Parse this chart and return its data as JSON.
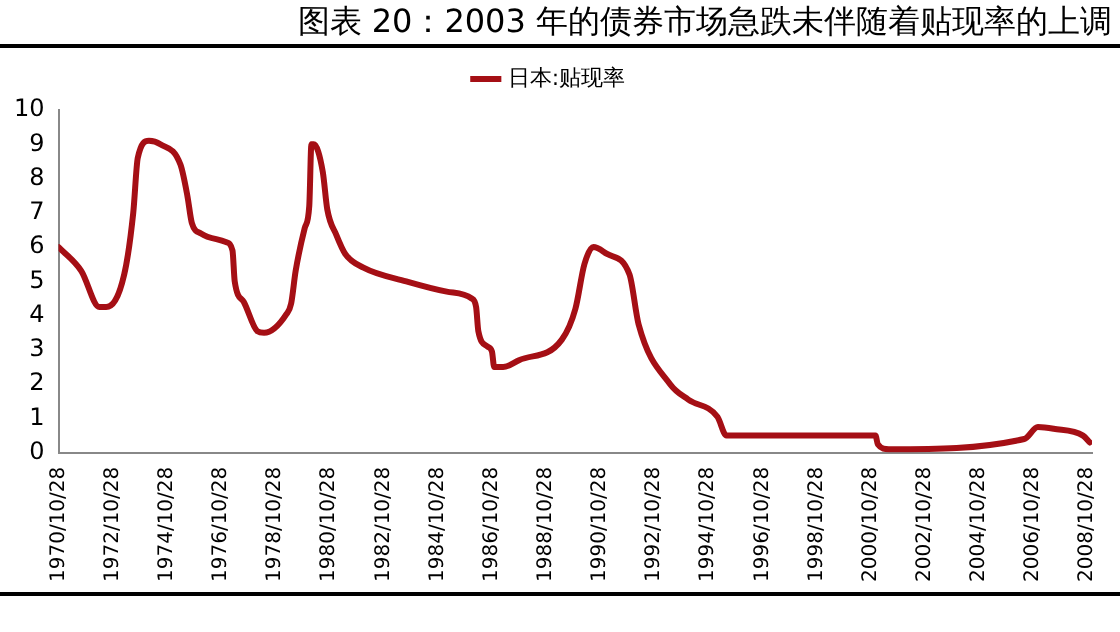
{
  "chart_data": {
    "type": "line",
    "title": "图表 20：2003 年的债券市场急跌未伴随着贴现率的上调",
    "series": [
      {
        "name": "日本:贴现率",
        "color": "#a50f15",
        "x": [
          "1970-10-28",
          "1971-09",
          "1972-05",
          "1972-08",
          "1973-04",
          "1973-08",
          "1973-10",
          "1974-03",
          "1974-08",
          "1975-05",
          "1975-08",
          "1975-10",
          "1976-02",
          "1977-01",
          "1977-04",
          "1977-05",
          "1977-09",
          "1978-03",
          "1978-06",
          "1979-04",
          "1979-06",
          "1979-08",
          "1979-12",
          "1980-02",
          "1980-03",
          "1980-04",
          "1980-08",
          "1980-10",
          "1981-02",
          "1981-06",
          "1982-02",
          "1983-09",
          "1985-03",
          "1986-02",
          "1986-04",
          "1986-05",
          "1986-09",
          "1986-11",
          "1986-12",
          "1987-04",
          "1987-11",
          "1989-06",
          "1989-12",
          "1990-04",
          "1990-08",
          "1991-02",
          "1991-12",
          "1992-04",
          "1993-06",
          "1994-02",
          "1995-03",
          "1995-07",
          "1995-12",
          "2001-01",
          "2001-02",
          "2001-07",
          "2006-07",
          "2007-01",
          "2007-08",
          "2008-09",
          "2008-12"
        ],
        "values": [
          6.0,
          5.3,
          4.25,
          4.25,
          5.2,
          7.0,
          8.6,
          9.1,
          9.0,
          8.4,
          7.5,
          6.7,
          6.4,
          6.15,
          5.9,
          5.0,
          4.4,
          3.55,
          3.5,
          4.05,
          4.35,
          5.3,
          6.55,
          7.2,
          9.0,
          9.0,
          8.2,
          7.1,
          6.35,
          5.8,
          5.4,
          5.0,
          4.7,
          4.5,
          4.25,
          3.55,
          3.1,
          2.95,
          2.5,
          2.5,
          2.7,
          3.3,
          4.2,
          5.5,
          6.0,
          5.8,
          5.2,
          3.75,
          2.0,
          1.55,
          1.05,
          0.5,
          0.5,
          0.5,
          0.25,
          0.1,
          0.4,
          0.75,
          0.7,
          0.5,
          0.3
        ]
      }
    ],
    "xlim": [
      "1970-10-28",
      "2008-12-31"
    ],
    "xticks": [
      {
        "value": "1970-10-28",
        "label": "1970/10/28"
      },
      {
        "value": "1972-10-28",
        "label": "1972/10/28"
      },
      {
        "value": "1974-10-28",
        "label": "1974/10/28"
      },
      {
        "value": "1976-10-28",
        "label": "1976/10/28"
      },
      {
        "value": "1978-10-28",
        "label": "1978/10/28"
      },
      {
        "value": "1980-10-28",
        "label": "1980/10/28"
      },
      {
        "value": "1982-10-28",
        "label": "1982/10/28"
      },
      {
        "value": "1984-10-28",
        "label": "1984/10/28"
      },
      {
        "value": "1986-10-28",
        "label": "1986/10/28"
      },
      {
        "value": "1988-10-28",
        "label": "1988/10/28"
      },
      {
        "value": "1990-10-28",
        "label": "1990/10/28"
      },
      {
        "value": "1992-10-28",
        "label": "1992/10/28"
      },
      {
        "value": "1994-10-28",
        "label": "1994/10/28"
      },
      {
        "value": "1996-10-28",
        "label": "1996/10/28"
      },
      {
        "value": "1998-10-28",
        "label": "1998/10/28"
      },
      {
        "value": "2000-10-28",
        "label": "2000/10/28"
      },
      {
        "value": "2002-10-28",
        "label": "2002/10/28"
      },
      {
        "value": "2004-10-28",
        "label": "2004/10/28"
      },
      {
        "value": "2006-10-28",
        "label": "2006/10/28"
      },
      {
        "value": "2008-10-28",
        "label": "2008/10/28"
      }
    ],
    "ylim": [
      0,
      10
    ],
    "yticks": [
      0,
      1,
      2,
      3,
      4,
      5,
      6,
      7,
      8,
      9,
      10
    ],
    "grid": false,
    "legend": "top",
    "marker": "none",
    "line_style": "solid"
  }
}
